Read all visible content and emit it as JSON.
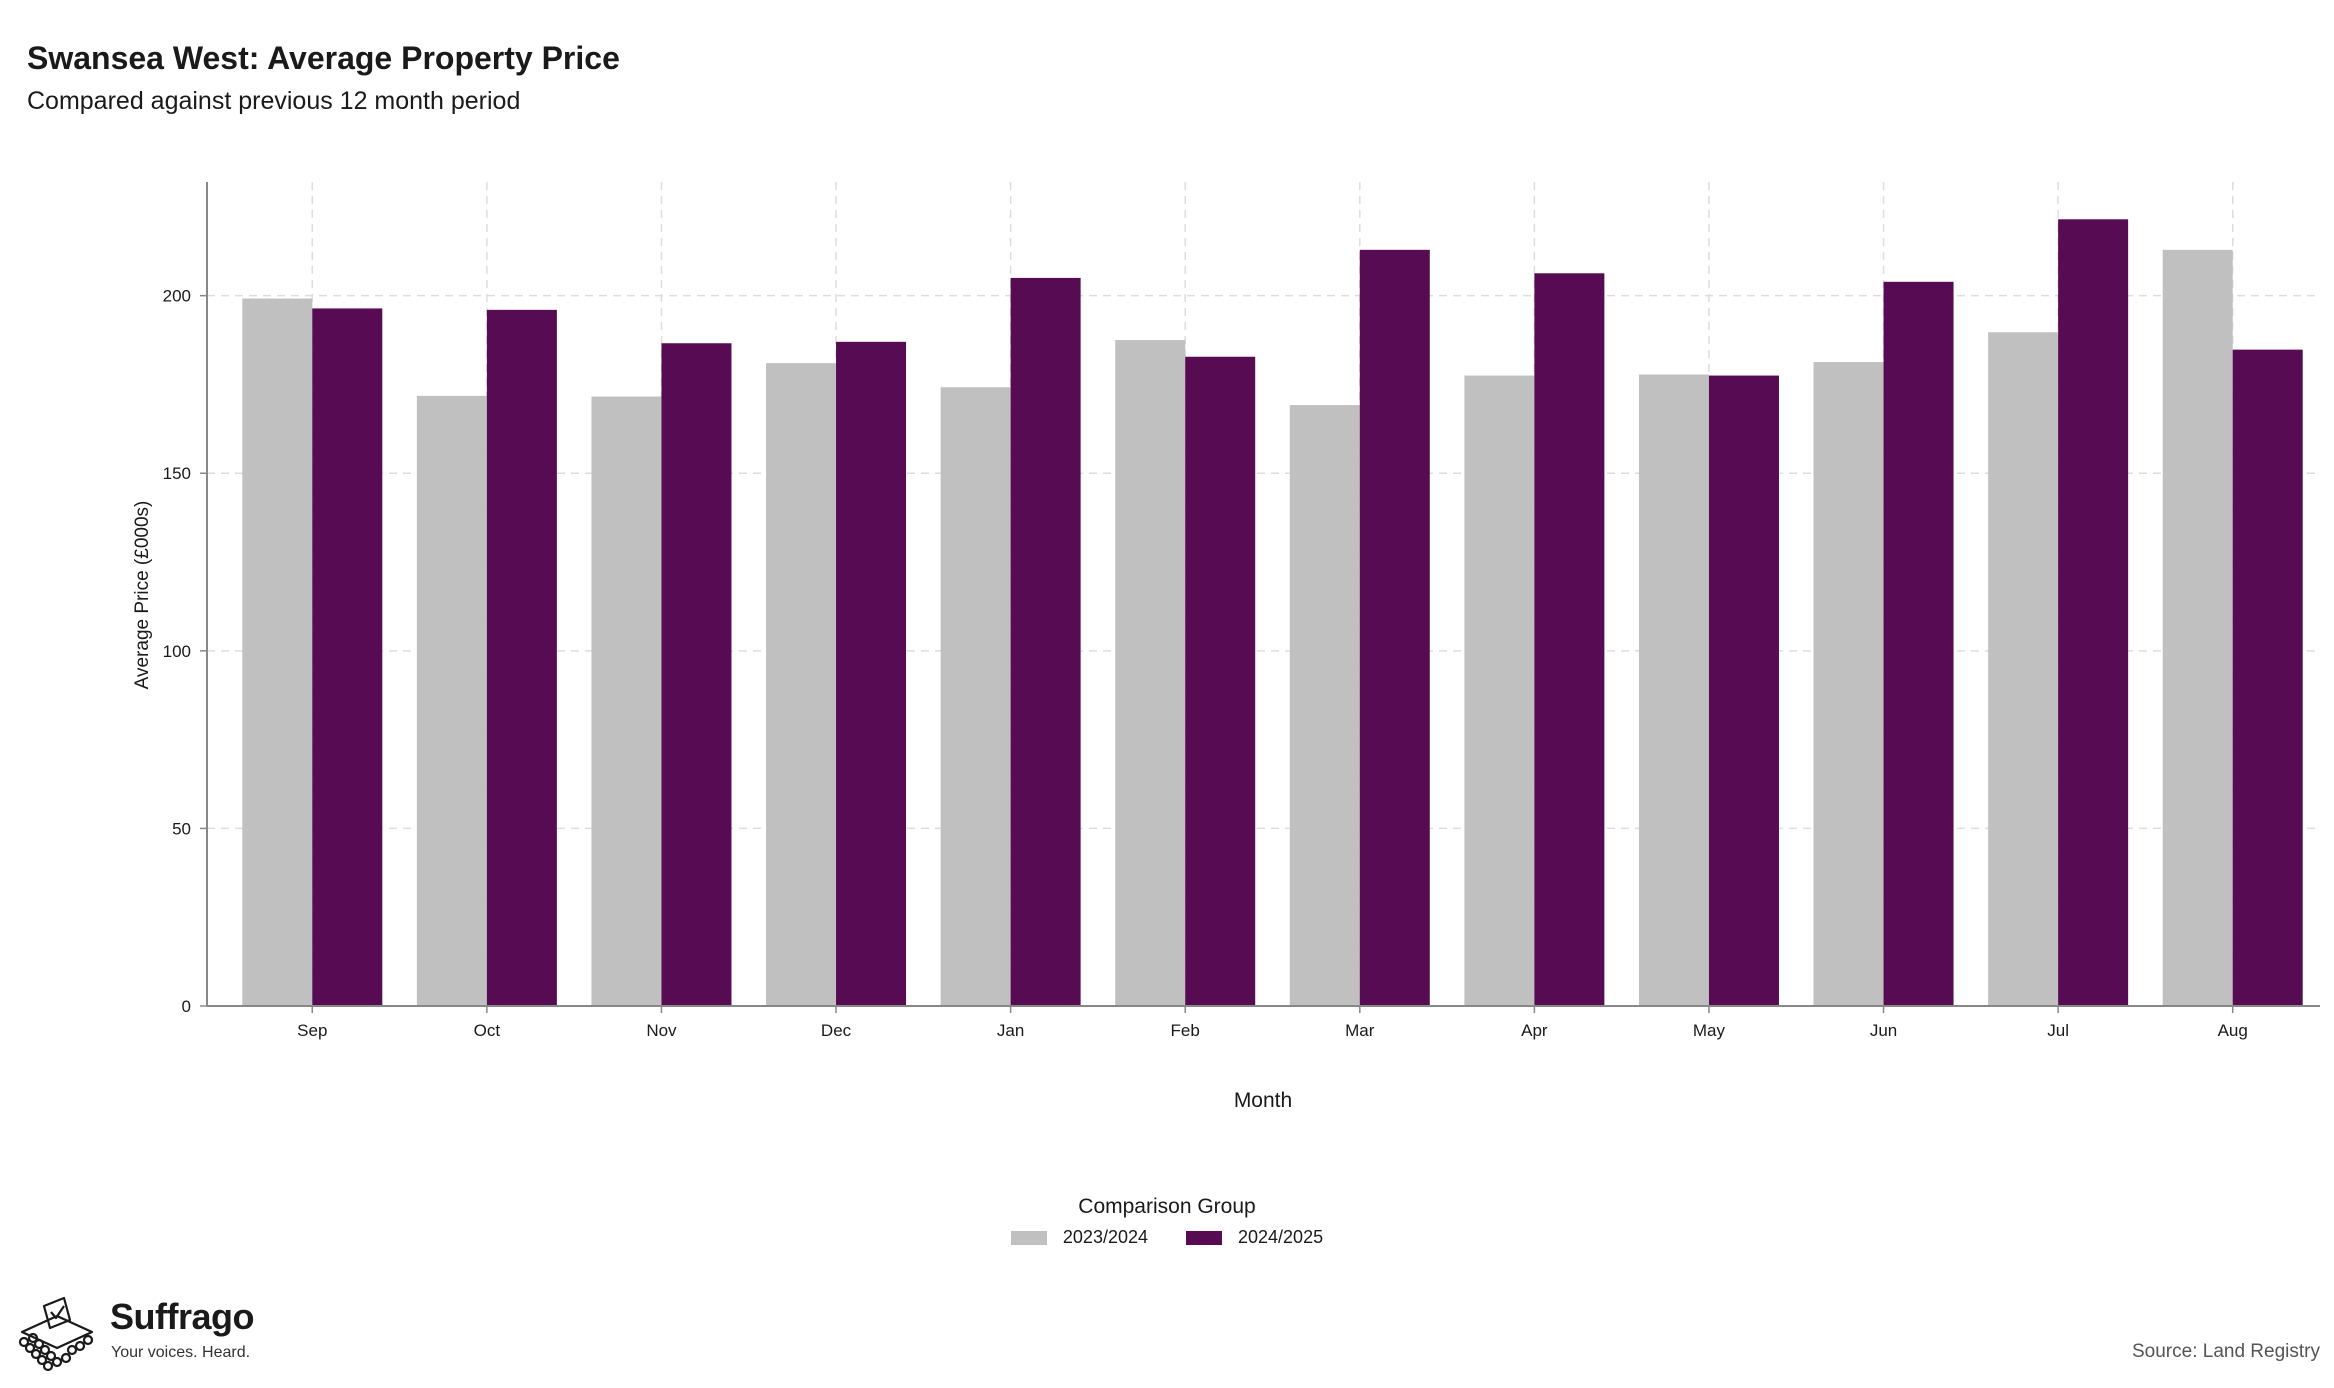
{
  "header": {
    "title": "Swansea West: Average Property Price",
    "subtitle": "Compared against previous 12 month period"
  },
  "chart_data": {
    "type": "bar",
    "categories": [
      "Sep",
      "Oct",
      "Nov",
      "Dec",
      "Jan",
      "Feb",
      "Mar",
      "Apr",
      "May",
      "Jun",
      "Jul",
      "Aug"
    ],
    "series": [
      {
        "name": "2023/2024",
        "color": "#c0c0c0",
        "values": [
          199.2,
          171.8,
          171.6,
          181.0,
          174.2,
          187.5,
          169.2,
          177.5,
          177.8,
          181.3,
          189.7,
          212.9
        ]
      },
      {
        "name": "2024/2025",
        "color": "#560b52",
        "values": [
          196.4,
          196.0,
          186.6,
          187.0,
          205.0,
          182.8,
          212.9,
          206.3,
          177.5,
          203.9,
          221.5,
          184.8
        ]
      }
    ],
    "xlabel": "Month",
    "ylabel": "Average Price (£000s)",
    "ylim": [
      0,
      232
    ],
    "yticks": [
      0,
      50,
      100,
      150,
      200
    ],
    "ytick_labels": [
      "0",
      "50",
      "100",
      "150",
      "200"
    ],
    "grid": true,
    "legend_position": "bottom"
  },
  "legend": {
    "title": "Comparison Group",
    "items": [
      {
        "label": "2023/2024",
        "color": "#c0c0c0"
      },
      {
        "label": "2024/2025",
        "color": "#560b52"
      }
    ]
  },
  "footer": {
    "brand": "Suffrago",
    "tagline": "Your voices. Heard.",
    "source": "Source: Land Registry"
  },
  "icons": {
    "logo": "ballot-box-logo-icon"
  }
}
